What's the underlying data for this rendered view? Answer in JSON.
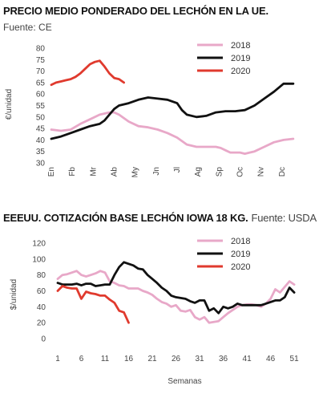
{
  "chart_data": [
    {
      "type": "line",
      "title": "PRECIO MEDIO PONDERADO DEL LECHÓN EN LA UE.",
      "subtitle": "Fuente: CE",
      "ylabel": "€/unidad",
      "xlabel": "",
      "ylim": [
        30,
        80
      ],
      "yticks": [
        30,
        35,
        40,
        45,
        50,
        55,
        60,
        65,
        70,
        75,
        80
      ],
      "xlim": [
        0,
        52
      ],
      "xticks": [
        {
          "pos": 0,
          "label": "En"
        },
        {
          "pos": 4.33,
          "label": "Fb"
        },
        {
          "pos": 8.67,
          "label": "Mr"
        },
        {
          "pos": 13,
          "label": "Ab"
        },
        {
          "pos": 17.33,
          "label": "My"
        },
        {
          "pos": 21.67,
          "label": "Jn"
        },
        {
          "pos": 26,
          "label": "Jl"
        },
        {
          "pos": 30.33,
          "label": "Ag"
        },
        {
          "pos": 34.67,
          "label": "Sp"
        },
        {
          "pos": 39,
          "label": "Oc"
        },
        {
          "pos": 43.33,
          "label": "Nv"
        },
        {
          "pos": 47.67,
          "label": "Dc"
        }
      ],
      "legend": "top-right",
      "series": [
        {
          "name": "2018",
          "color": "#e8a8c8",
          "x": [
            0,
            2,
            4,
            6,
            8,
            10,
            11,
            12,
            13,
            14,
            16,
            18,
            20,
            22,
            24,
            26,
            28,
            30,
            32,
            34,
            35,
            36,
            37,
            38,
            39,
            40,
            41,
            42,
            44,
            46,
            48,
            50
          ],
          "y": [
            44.5,
            44,
            44.5,
            47,
            49,
            51,
            51.5,
            52,
            52,
            51,
            48,
            46,
            45.5,
            44.5,
            43,
            41,
            38,
            37,
            37,
            37,
            36.5,
            35.5,
            34.5,
            34.5,
            34.5,
            34,
            34.5,
            35,
            37,
            39,
            40,
            40.5
          ]
        },
        {
          "name": "2019",
          "color": "#111111",
          "x": [
            0,
            2,
            4,
            6,
            8,
            10,
            11,
            12,
            13,
            14,
            16,
            18,
            20,
            22,
            24,
            26,
            27,
            28,
            30,
            32,
            34,
            36,
            38,
            40,
            42,
            44,
            46,
            48,
            49,
            50
          ],
          "y": [
            40.5,
            41.5,
            43,
            44.5,
            46,
            47,
            48.5,
            51,
            53.5,
            55,
            56,
            57.5,
            58.5,
            58,
            57.5,
            56,
            53,
            51,
            50,
            50.5,
            52,
            52.5,
            52.5,
            53,
            55,
            58,
            61,
            64.5,
            64.5,
            64.5
          ]
        },
        {
          "name": "2020",
          "color": "#e03a2e",
          "x": [
            0,
            1,
            2,
            3,
            4,
            5,
            6,
            7,
            8,
            9,
            10,
            11,
            12,
            13,
            14,
            15
          ],
          "y": [
            64,
            65,
            65.5,
            66,
            66.5,
            67.5,
            69,
            71,
            73,
            74,
            74.5,
            72,
            69,
            67,
            66.5,
            65
          ]
        }
      ]
    },
    {
      "type": "line",
      "title": "EEEUU. COTIZACIÓN BASE LECHÓN IOWA 18 KG.",
      "subtitle": "Fuente: USDA",
      "ylabel": "$/unidad",
      "xlabel": "Semanas",
      "ylim": [
        0,
        120
      ],
      "yticks": [
        0,
        20,
        40,
        60,
        80,
        100,
        120
      ],
      "xlim": [
        1,
        52
      ],
      "xticks": [
        1,
        6,
        11,
        16,
        21,
        26,
        31,
        36,
        41,
        46,
        51
      ],
      "legend": "top-right",
      "series": [
        {
          "name": "2018",
          "color": "#e8a8c8",
          "x": [
            1,
            2,
            3,
            4,
            5,
            6,
            7,
            8,
            9,
            10,
            11,
            12,
            13,
            14,
            15,
            16,
            17,
            18,
            19,
            20,
            21,
            22,
            23,
            24,
            25,
            26,
            27,
            28,
            29,
            30,
            31,
            32,
            33,
            34,
            35,
            36,
            37,
            38,
            39,
            40,
            41,
            42,
            43,
            44,
            45,
            46,
            47,
            48,
            49,
            50,
            51
          ],
          "y": [
            75,
            80,
            81,
            83,
            85,
            80,
            78,
            80,
            82,
            85,
            83,
            72,
            70,
            67,
            66,
            63,
            63,
            63,
            60,
            58,
            55,
            50,
            46,
            44,
            40,
            42,
            35,
            34,
            36,
            27,
            24,
            27,
            20,
            21,
            22,
            27,
            32,
            36,
            40,
            42,
            43,
            43,
            42,
            40,
            44,
            50,
            62,
            58,
            65,
            72,
            68
          ]
        },
        {
          "name": "2019",
          "color": "#111111",
          "x": [
            1,
            2,
            3,
            4,
            5,
            6,
            7,
            8,
            9,
            10,
            11,
            12,
            13,
            14,
            15,
            16,
            17,
            18,
            19,
            20,
            21,
            22,
            23,
            24,
            25,
            26,
            27,
            28,
            29,
            30,
            31,
            32,
            33,
            34,
            35,
            36,
            37,
            38,
            39,
            40,
            41,
            42,
            43,
            44,
            45,
            46,
            47,
            48,
            49,
            50,
            51
          ],
          "y": [
            70,
            68,
            68,
            68,
            69,
            67,
            69,
            69,
            66,
            67,
            68,
            68,
            80,
            90,
            96,
            94,
            92,
            88,
            87,
            80,
            75,
            70,
            64,
            60,
            54,
            52,
            51,
            50,
            47,
            45,
            48,
            48,
            35,
            38,
            32,
            40,
            38,
            40,
            44,
            42,
            42,
            42,
            42,
            42,
            44,
            46,
            48,
            48,
            52,
            64,
            58
          ]
        },
        {
          "name": "2020",
          "color": "#e03a2e",
          "x": [
            1,
            2,
            3,
            4,
            5,
            6,
            7,
            8,
            9,
            10,
            11,
            12,
            13,
            14,
            15,
            16
          ],
          "y": [
            60,
            66,
            64,
            63,
            63,
            50,
            59,
            57,
            56,
            54,
            54,
            49,
            45,
            35,
            33,
            20
          ]
        }
      ]
    }
  ]
}
